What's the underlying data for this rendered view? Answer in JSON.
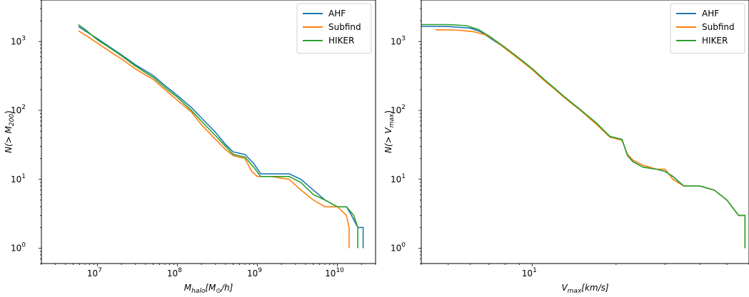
{
  "chart_data": [
    {
      "type": "line",
      "id": "left",
      "xscale": "log",
      "yscale": "log",
      "xlim": [
        2000000,
        30000000000
      ],
      "ylim": [
        0.6,
        4000
      ],
      "xlabel_base": "M",
      "xlabel_sub": "halo",
      "xlabel_rest": "[M",
      "xlabel_sub2": "⊙",
      "xlabel_tail": "/h]",
      "ylabel_pre": "N(> M",
      "ylabel_sub": "200",
      "ylabel_post": ")",
      "xticks": [
        {
          "value": 10000000,
          "base": "10",
          "exp": "7"
        },
        {
          "value": 100000000,
          "base": "10",
          "exp": "8"
        },
        {
          "value": 1000000000,
          "base": "10",
          "exp": "9"
        },
        {
          "value": 10000000000,
          "base": "10",
          "exp": "10"
        }
      ],
      "yticks": [
        {
          "value": 1,
          "base": "10",
          "exp": "0"
        },
        {
          "value": 10,
          "base": "10",
          "exp": "1"
        },
        {
          "value": 100,
          "base": "10",
          "exp": "2"
        },
        {
          "value": 1000,
          "base": "10",
          "exp": "3"
        }
      ],
      "legend": "top-right",
      "series": [
        {
          "name": "AHF",
          "color": "#1f77b4",
          "points": [
            [
              5800000,
              1650
            ],
            [
              7000000,
              1430
            ],
            [
              10000000,
              1100
            ],
            [
              15000000,
              800
            ],
            [
              20000000,
              640
            ],
            [
              30000000,
              460
            ],
            [
              50000000,
              320
            ],
            [
              70000000,
              230
            ],
            [
              100000000,
              165
            ],
            [
              150000000,
              110
            ],
            [
              200000000,
              78
            ],
            [
              300000000,
              48
            ],
            [
              400000000,
              32
            ],
            [
              500000000,
              25
            ],
            [
              700000000,
              23
            ],
            [
              900000000,
              17
            ],
            [
              1100000000,
              12
            ],
            [
              1500000000,
              12
            ],
            [
              2500000000,
              12
            ],
            [
              3500000000,
              10
            ],
            [
              5000000000,
              7
            ],
            [
              7000000000,
              5
            ],
            [
              10000000000,
              4
            ],
            [
              13000000000,
              4
            ],
            [
              15000000000,
              3
            ],
            [
              18000000000,
              2
            ],
            [
              21000000000,
              2
            ],
            [
              21000000000,
              1
            ]
          ]
        },
        {
          "name": "Subfind",
          "color": "#ff7f0e",
          "points": [
            [
              5800000,
              1430
            ],
            [
              7000000,
              1250
            ],
            [
              10000000,
              950
            ],
            [
              15000000,
              690
            ],
            [
              20000000,
              560
            ],
            [
              30000000,
              400
            ],
            [
              50000000,
              280
            ],
            [
              70000000,
              200
            ],
            [
              100000000,
              140
            ],
            [
              150000000,
              95
            ],
            [
              200000000,
              62
            ],
            [
              300000000,
              38
            ],
            [
              400000000,
              27
            ],
            [
              500000000,
              22
            ],
            [
              700000000,
              20
            ],
            [
              850000000,
              13
            ],
            [
              1000000000,
              11
            ],
            [
              1500000000,
              11
            ],
            [
              2500000000,
              10
            ],
            [
              3500000000,
              7
            ],
            [
              5000000000,
              5
            ],
            [
              7000000000,
              4
            ],
            [
              10000000000,
              4
            ],
            [
              13000000000,
              3
            ],
            [
              14000000000,
              2
            ],
            [
              14000000000,
              1
            ]
          ]
        },
        {
          "name": "HIKER",
          "color": "#2ca02c",
          "points": [
            [
              5800000,
              1750
            ],
            [
              7000000,
              1500
            ],
            [
              10000000,
              1060
            ],
            [
              15000000,
              780
            ],
            [
              20000000,
              620
            ],
            [
              30000000,
              440
            ],
            [
              50000000,
              300
            ],
            [
              70000000,
              215
            ],
            [
              100000000,
              155
            ],
            [
              150000000,
              100
            ],
            [
              200000000,
              70
            ],
            [
              300000000,
              43
            ],
            [
              400000000,
              30
            ],
            [
              500000000,
              23
            ],
            [
              700000000,
              21
            ],
            [
              900000000,
              15
            ],
            [
              1100000000,
              11
            ],
            [
              1500000000,
              11
            ],
            [
              2500000000,
              11
            ],
            [
              3500000000,
              9
            ],
            [
              5000000000,
              6
            ],
            [
              7000000000,
              5
            ],
            [
              10000000000,
              4
            ],
            [
              13000000000,
              4
            ],
            [
              16000000000,
              3
            ],
            [
              18000000000,
              2
            ],
            [
              18000000000,
              1
            ]
          ]
        }
      ]
    },
    {
      "type": "line",
      "id": "right",
      "xscale": "log",
      "yscale": "log",
      "xlim": [
        4,
        60
      ],
      "ylim": [
        0.6,
        4000
      ],
      "xlabel_base": "V",
      "xlabel_sub": "max",
      "xlabel_rest": "[km/s]",
      "xlabel_sub2": "",
      "xlabel_tail": "",
      "ylabel_pre": "N(> V",
      "ylabel_sub": "max",
      "ylabel_post": ")",
      "xticks": [
        {
          "value": 10,
          "base": "10",
          "exp": "1"
        }
      ],
      "yticks": [
        {
          "value": 1,
          "base": "10",
          "exp": "0"
        },
        {
          "value": 10,
          "base": "10",
          "exp": "1"
        },
        {
          "value": 100,
          "base": "10",
          "exp": "2"
        },
        {
          "value": 1000,
          "base": "10",
          "exp": "3"
        }
      ],
      "legend": "top-right",
      "series": [
        {
          "name": "AHF",
          "color": "#1f77b4",
          "points": [
            [
              4.0,
              1660
            ],
            [
              5.0,
              1650
            ],
            [
              6.0,
              1560
            ],
            [
              6.5,
              1400
            ],
            [
              7.0,
              1150
            ],
            [
              8.0,
              800
            ],
            [
              9.0,
              560
            ],
            [
              10.0,
              400
            ],
            [
              11.0,
              280
            ],
            [
              12.0,
              210
            ],
            [
              13.0,
              160
            ],
            [
              15.0,
              100
            ],
            [
              17.0,
              65
            ],
            [
              19.0,
              42
            ],
            [
              21.0,
              38
            ],
            [
              22.0,
              22
            ],
            [
              23.0,
              18
            ],
            [
              25.0,
              15
            ],
            [
              28.0,
              14
            ],
            [
              30.0,
              13
            ],
            [
              32.0,
              11
            ],
            [
              35.0,
              8
            ],
            [
              40.0,
              8
            ],
            [
              45.0,
              7
            ],
            [
              50.0,
              5
            ],
            [
              55.0,
              3
            ],
            [
              58.0,
              3
            ],
            [
              58.0,
              1
            ]
          ]
        },
        {
          "name": "Subfind",
          "color": "#ff7f0e",
          "points": [
            [
              4.5,
              1480
            ],
            [
              5.5,
              1460
            ],
            [
              6.2,
              1380
            ],
            [
              6.8,
              1250
            ],
            [
              7.2,
              1100
            ],
            [
              8.0,
              790
            ],
            [
              9.0,
              550
            ],
            [
              10.0,
              390
            ],
            [
              11.0,
              275
            ],
            [
              12.0,
              205
            ],
            [
              13.0,
              155
            ],
            [
              15.0,
              98
            ],
            [
              17.0,
              63
            ],
            [
              19.0,
              41
            ],
            [
              21.0,
              37
            ],
            [
              22.0,
              23
            ],
            [
              23.0,
              19
            ],
            [
              25.0,
              16
            ],
            [
              28.0,
              14
            ],
            [
              30.0,
              14
            ],
            [
              32.0,
              10
            ],
            [
              35.0,
              8
            ],
            [
              40.0,
              8
            ],
            [
              45.0,
              7
            ],
            [
              50.0,
              5
            ],
            [
              55.0,
              3
            ],
            [
              58.0,
              3
            ],
            [
              58.0,
              1
            ]
          ]
        },
        {
          "name": "HIKER",
          "color": "#2ca02c",
          "points": [
            [
              3.8,
              1760
            ],
            [
              5.0,
              1760
            ],
            [
              5.8,
              1700
            ],
            [
              6.4,
              1500
            ],
            [
              7.0,
              1200
            ],
            [
              8.0,
              820
            ],
            [
              9.0,
              570
            ],
            [
              10.0,
              405
            ],
            [
              11.0,
              285
            ],
            [
              12.0,
              212
            ],
            [
              13.0,
              160
            ],
            [
              15.0,
              100
            ],
            [
              17.0,
              66
            ],
            [
              19.0,
              42
            ],
            [
              21.0,
              38
            ],
            [
              22.0,
              22
            ],
            [
              23.0,
              18
            ],
            [
              25.0,
              15
            ],
            [
              28.0,
              14
            ],
            [
              30.0,
              13
            ],
            [
              32.0,
              11
            ],
            [
              35.0,
              8
            ],
            [
              40.0,
              8
            ],
            [
              45.0,
              7
            ],
            [
              50.0,
              5
            ],
            [
              55.0,
              3
            ],
            [
              58.0,
              3
            ],
            [
              58.0,
              1
            ]
          ]
        }
      ]
    }
  ]
}
